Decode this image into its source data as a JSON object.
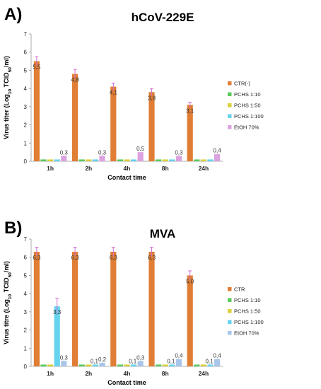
{
  "chart_data": [
    {
      "type": "bar",
      "panel": "A)",
      "title": "hCoV-229E",
      "xlabel": "Contact time",
      "ylabel_parts": [
        "Virus titer (Log",
        "10",
        " TCID",
        "50",
        "/ml)"
      ],
      "ylim": [
        0,
        7
      ],
      "yticks": [
        "0",
        "1",
        "2",
        "3",
        "4",
        "5",
        "6",
        "7"
      ],
      "categories": [
        "1h",
        "2h",
        "4h",
        "8h",
        "24h"
      ],
      "series": [
        {
          "name": "CTR(-)",
          "color": "#e07e35",
          "values": [
            5.5,
            4.8,
            4.1,
            3.8,
            3.1
          ],
          "errors": [
            0.25,
            0.25,
            0.2,
            0.2,
            0.15
          ],
          "labels": [
            "5,5",
            "4,8",
            "4,1",
            "3,8",
            "3,1"
          ]
        },
        {
          "name": "PCHS 1:10",
          "color": "#5bc95b",
          "values": [
            0.1,
            0.1,
            0.1,
            0.1,
            0.1
          ],
          "errors": [
            0,
            0,
            0,
            0,
            0
          ],
          "labels": [
            "",
            "",
            "",
            "",
            ""
          ]
        },
        {
          "name": "PCHS 1:50",
          "color": "#d8cf3a",
          "values": [
            0.1,
            0.1,
            0.1,
            0.1,
            0.1
          ],
          "errors": [
            0,
            0,
            0,
            0,
            0
          ],
          "labels": [
            "",
            "",
            "",
            "",
            ""
          ]
        },
        {
          "name": "PCHS 1:100",
          "color": "#66d3ee",
          "values": [
            0.1,
            0.1,
            0.1,
            0.1,
            0.1
          ],
          "errors": [
            0,
            0,
            0,
            0,
            0
          ],
          "labels": [
            "",
            "",
            "",
            "",
            ""
          ]
        },
        {
          "name": "EtOH 70%",
          "color": "#dca2e0",
          "values": [
            0.3,
            0.3,
            0.5,
            0.3,
            0.4
          ],
          "errors": [
            0,
            0,
            0,
            0,
            0
          ],
          "labels": [
            "0,3",
            "0,3",
            "0,5",
            "0,3",
            "0,4"
          ]
        }
      ],
      "legend": "right"
    },
    {
      "type": "bar",
      "panel": "B)",
      "title": "MVA",
      "xlabel": "Contact time",
      "ylabel_parts": [
        "Virus titre (Log",
        "10",
        " TCID",
        "50",
        "/ml)"
      ],
      "ylim": [
        0,
        7
      ],
      "yticks": [
        "0",
        "1",
        "2",
        "3",
        "4",
        "5",
        "6",
        "7"
      ],
      "categories": [
        "1h",
        "2h",
        "4h",
        "8h",
        "24h"
      ],
      "series": [
        {
          "name": "CTR",
          "color": "#e07e35",
          "values": [
            6.3,
            6.3,
            6.3,
            6.3,
            5.0
          ],
          "errors": [
            0.25,
            0.25,
            0.25,
            0.25,
            0.25
          ],
          "labels": [
            "6,3",
            "6,3",
            "6,3",
            "6,3",
            "5,0"
          ]
        },
        {
          "name": "PCHS 1:10",
          "color": "#5bc95b",
          "values": [
            0.1,
            0.1,
            0.1,
            0.1,
            0.1
          ],
          "errors": [
            0,
            0,
            0,
            0,
            0
          ],
          "labels": [
            "",
            "",
            "",
            "",
            ""
          ]
        },
        {
          "name": "PCHS 1:50",
          "color": "#d8cf3a",
          "values": [
            0.1,
            0.1,
            0.1,
            0.1,
            0.1
          ],
          "errors": [
            0,
            0,
            0,
            0,
            0
          ],
          "labels": [
            "",
            "",
            "",
            "",
            ""
          ]
        },
        {
          "name": "PCHS 1:100",
          "color": "#66d3ee",
          "values": [
            3.3,
            0.1,
            0.1,
            0.1,
            0.1
          ],
          "errors": [
            0.45,
            0,
            0,
            0,
            0
          ],
          "labels": [
            "3,3",
            "0,1",
            "0,1",
            "0,1",
            "0,1"
          ]
        },
        {
          "name": "EtOH 70%",
          "color": "#a9c6ea",
          "values": [
            0.3,
            0.2,
            0.3,
            0.4,
            0.4
          ],
          "errors": [
            0,
            0,
            0,
            0,
            0
          ],
          "labels": [
            "0,3",
            "0,2",
            "0,3",
            "0,4",
            "0,4"
          ]
        }
      ],
      "legend": "right"
    }
  ]
}
